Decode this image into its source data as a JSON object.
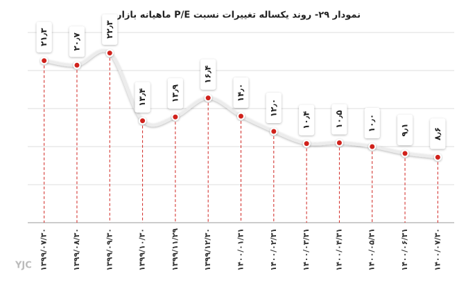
{
  "chart_data": {
    "type": "line",
    "title": "نمودار ۲۹- روند یکساله تغییرات نسبت P/E ماهیانه بازار",
    "categories": [
      "۱۳۹۹/۰۷/۳۰",
      "۱۳۹۹/۰۸/۳۰",
      "۱۳۹۹/۰۹/۳۰",
      "۱۳۹۹/۱۰/۳۰",
      "۱۳۹۹/۱۱/۲۹",
      "۱۳۹۹/۱۲/۳۰",
      "۱۴۰۰/۰۱/۳۱",
      "۱۴۰۰/۰۲/۳۱",
      "۱۴۰۰/۰۳/۳۱",
      "۱۴۰۰/۰۴/۳۱",
      "۱۴۰۰/۰۵/۳۱",
      "۱۴۰۰/۰۶/۳۱",
      "۱۴۰۰/۰۷/۳۰"
    ],
    "values": [
      21.3,
      20.7,
      22.3,
      13.4,
      13.9,
      16.4,
      14.0,
      12.0,
      10.4,
      10.5,
      10.0,
      9.1,
      8.6
    ],
    "value_labels": [
      "۲۱٫۳",
      "۲۰٫۷",
      "۲۲٫۳",
      "۱۳٫۴",
      "۱۳٫۹",
      "۱۶٫۴",
      "۱۴٫۰",
      "۱۲٫۰",
      "۱۰٫۴",
      "۱۰٫۵",
      "۱۰٫۰",
      "۹٫۱",
      "۸٫۶"
    ],
    "color": "#d0231f",
    "line_color": "#ececec",
    "ylim": [
      0,
      25
    ],
    "yticks": [
      0,
      5,
      10,
      15,
      20,
      25
    ],
    "grid": true,
    "logo": "YJC"
  }
}
